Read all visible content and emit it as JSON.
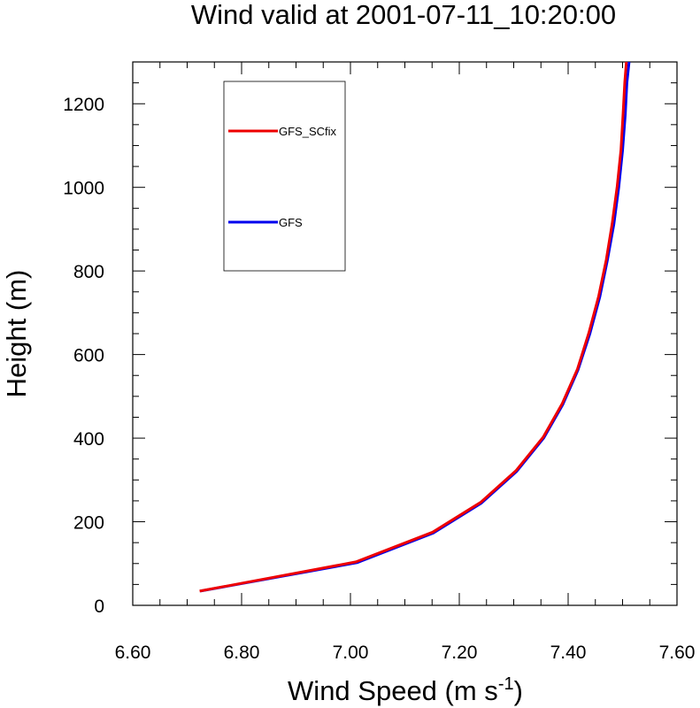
{
  "chart_data": {
    "type": "line",
    "title": "Wind valid at 2001-07-11_10:20:00",
    "xlabel": "Wind Speed (m s",
    "xlabel_superscript": "-1",
    "xlabel_suffix": ")",
    "ylabel": "Height (m)",
    "xlim": [
      6.6,
      7.6
    ],
    "ylim": [
      0,
      1300
    ],
    "xticks": [
      6.6,
      6.8,
      7.0,
      7.2,
      7.4,
      7.6
    ],
    "xtick_labels": [
      "6.60",
      "6.80",
      "7.00",
      "7.20",
      "7.40",
      "7.60"
    ],
    "yticks": [
      0,
      200,
      400,
      600,
      800,
      1000,
      1200
    ],
    "ytick_labels": [
      "0",
      "200",
      "400",
      "600",
      "800",
      "1000",
      "1200"
    ],
    "legend_position": "top-left",
    "series": [
      {
        "name": "GFS",
        "color": "#0000ee",
        "x": [
          6.724,
          7.012,
          7.152,
          7.241,
          7.305,
          7.355,
          7.39,
          7.418,
          7.44,
          7.458,
          7.472,
          7.484,
          7.493,
          7.5,
          7.505,
          7.508,
          7.512
        ],
        "y": [
          34,
          102,
          173,
          245,
          320,
          400,
          480,
          563,
          650,
          737,
          825,
          912,
          1000,
          1088,
          1175,
          1250,
          1300
        ]
      },
      {
        "name": "GFS_SCfix",
        "color": "#ee0000",
        "x": [
          6.723,
          7.01,
          7.151,
          7.24,
          7.304,
          7.354,
          7.389,
          7.417,
          7.438,
          7.456,
          7.47,
          7.481,
          7.49,
          7.497,
          7.501,
          7.504,
          7.507
        ],
        "y": [
          34,
          104,
          175,
          247,
          322,
          402,
          482,
          565,
          652,
          739,
          827,
          914,
          1002,
          1090,
          1177,
          1252,
          1300
        ]
      }
    ],
    "legend_order": [
      "GFS_SCfix",
      "GFS"
    ]
  }
}
